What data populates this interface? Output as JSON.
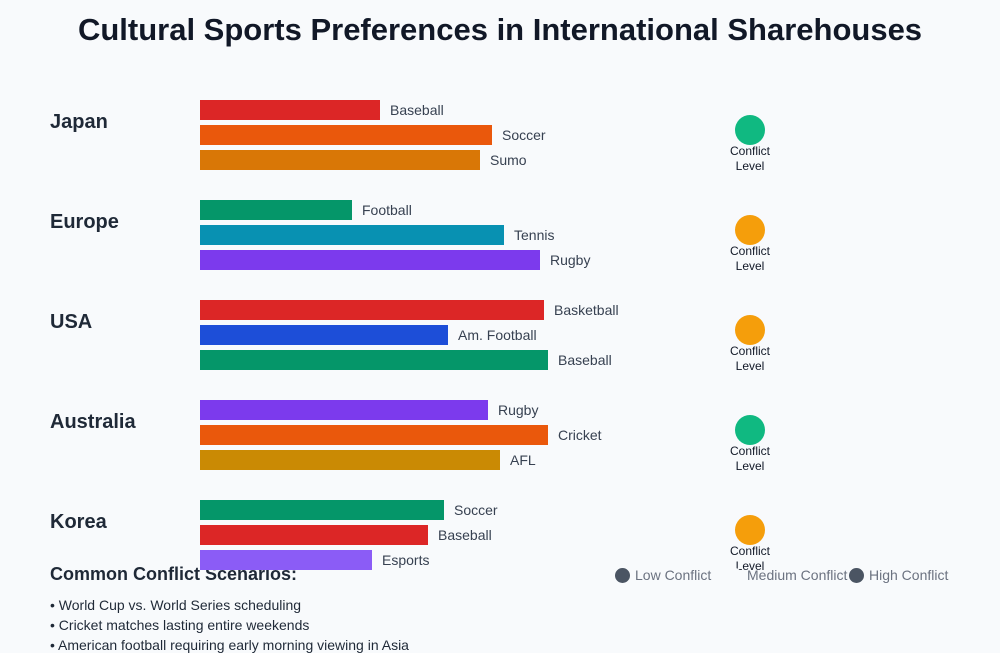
{
  "title": "Cultural Sports Preferences in International Sharehouses",
  "chart_data": {
    "type": "bar",
    "xlim": [
      0,
      100
    ],
    "conflict_label": "Conflict Level",
    "groups": [
      {
        "name": "Japan",
        "conflict_color": "#10b981",
        "series": [
          {
            "name": "Baseball",
            "color": "#dc2626",
            "value": 45
          },
          {
            "name": "Soccer",
            "color": "#ea580c",
            "value": 73
          },
          {
            "name": "Sumo",
            "color": "#d97706",
            "value": 70
          }
        ]
      },
      {
        "name": "Europe",
        "conflict_color": "#f59e0b",
        "series": [
          {
            "name": "Football",
            "color": "#059669",
            "value": 38
          },
          {
            "name": "Tennis",
            "color": "#0891b2",
            "value": 76
          },
          {
            "name": "Rugby",
            "color": "#7c3aed",
            "value": 85
          }
        ]
      },
      {
        "name": "USA",
        "conflict_color": "#f59e0b",
        "series": [
          {
            "name": "Basketball",
            "color": "#dc2626",
            "value": 86
          },
          {
            "name": "Am. Football",
            "color": "#1d4ed8",
            "value": 62
          },
          {
            "name": "Baseball",
            "color": "#059669",
            "value": 87
          }
        ]
      },
      {
        "name": "Australia",
        "conflict_color": "#10b981",
        "series": [
          {
            "name": "Rugby",
            "color": "#7c3aed",
            "value": 72
          },
          {
            "name": "Cricket",
            "color": "#ea580c",
            "value": 87
          },
          {
            "name": "AFL",
            "color": "#ca8a04",
            "value": 75
          }
        ]
      },
      {
        "name": "Korea",
        "conflict_color": "#f59e0b",
        "series": [
          {
            "name": "Soccer",
            "color": "#059669",
            "value": 61
          },
          {
            "name": "Baseball",
            "color": "#dc2626",
            "value": 57
          },
          {
            "name": "Esports",
            "color": "#8b5cf6",
            "value": 43
          }
        ]
      }
    ],
    "legend": [
      {
        "name": "Low Conflict",
        "color": "#4b5563"
      },
      {
        "name": "Medium Conflict",
        "color": "#f8fafc"
      },
      {
        "name": "High Conflict",
        "color": "#4b5563"
      }
    ]
  },
  "scenarios": {
    "title": "Common Conflict Scenarios:",
    "items": [
      "• World Cup vs. World Series scheduling",
      "• Cricket matches lasting entire weekends",
      "• American football requiring early morning viewing in Asia"
    ]
  }
}
